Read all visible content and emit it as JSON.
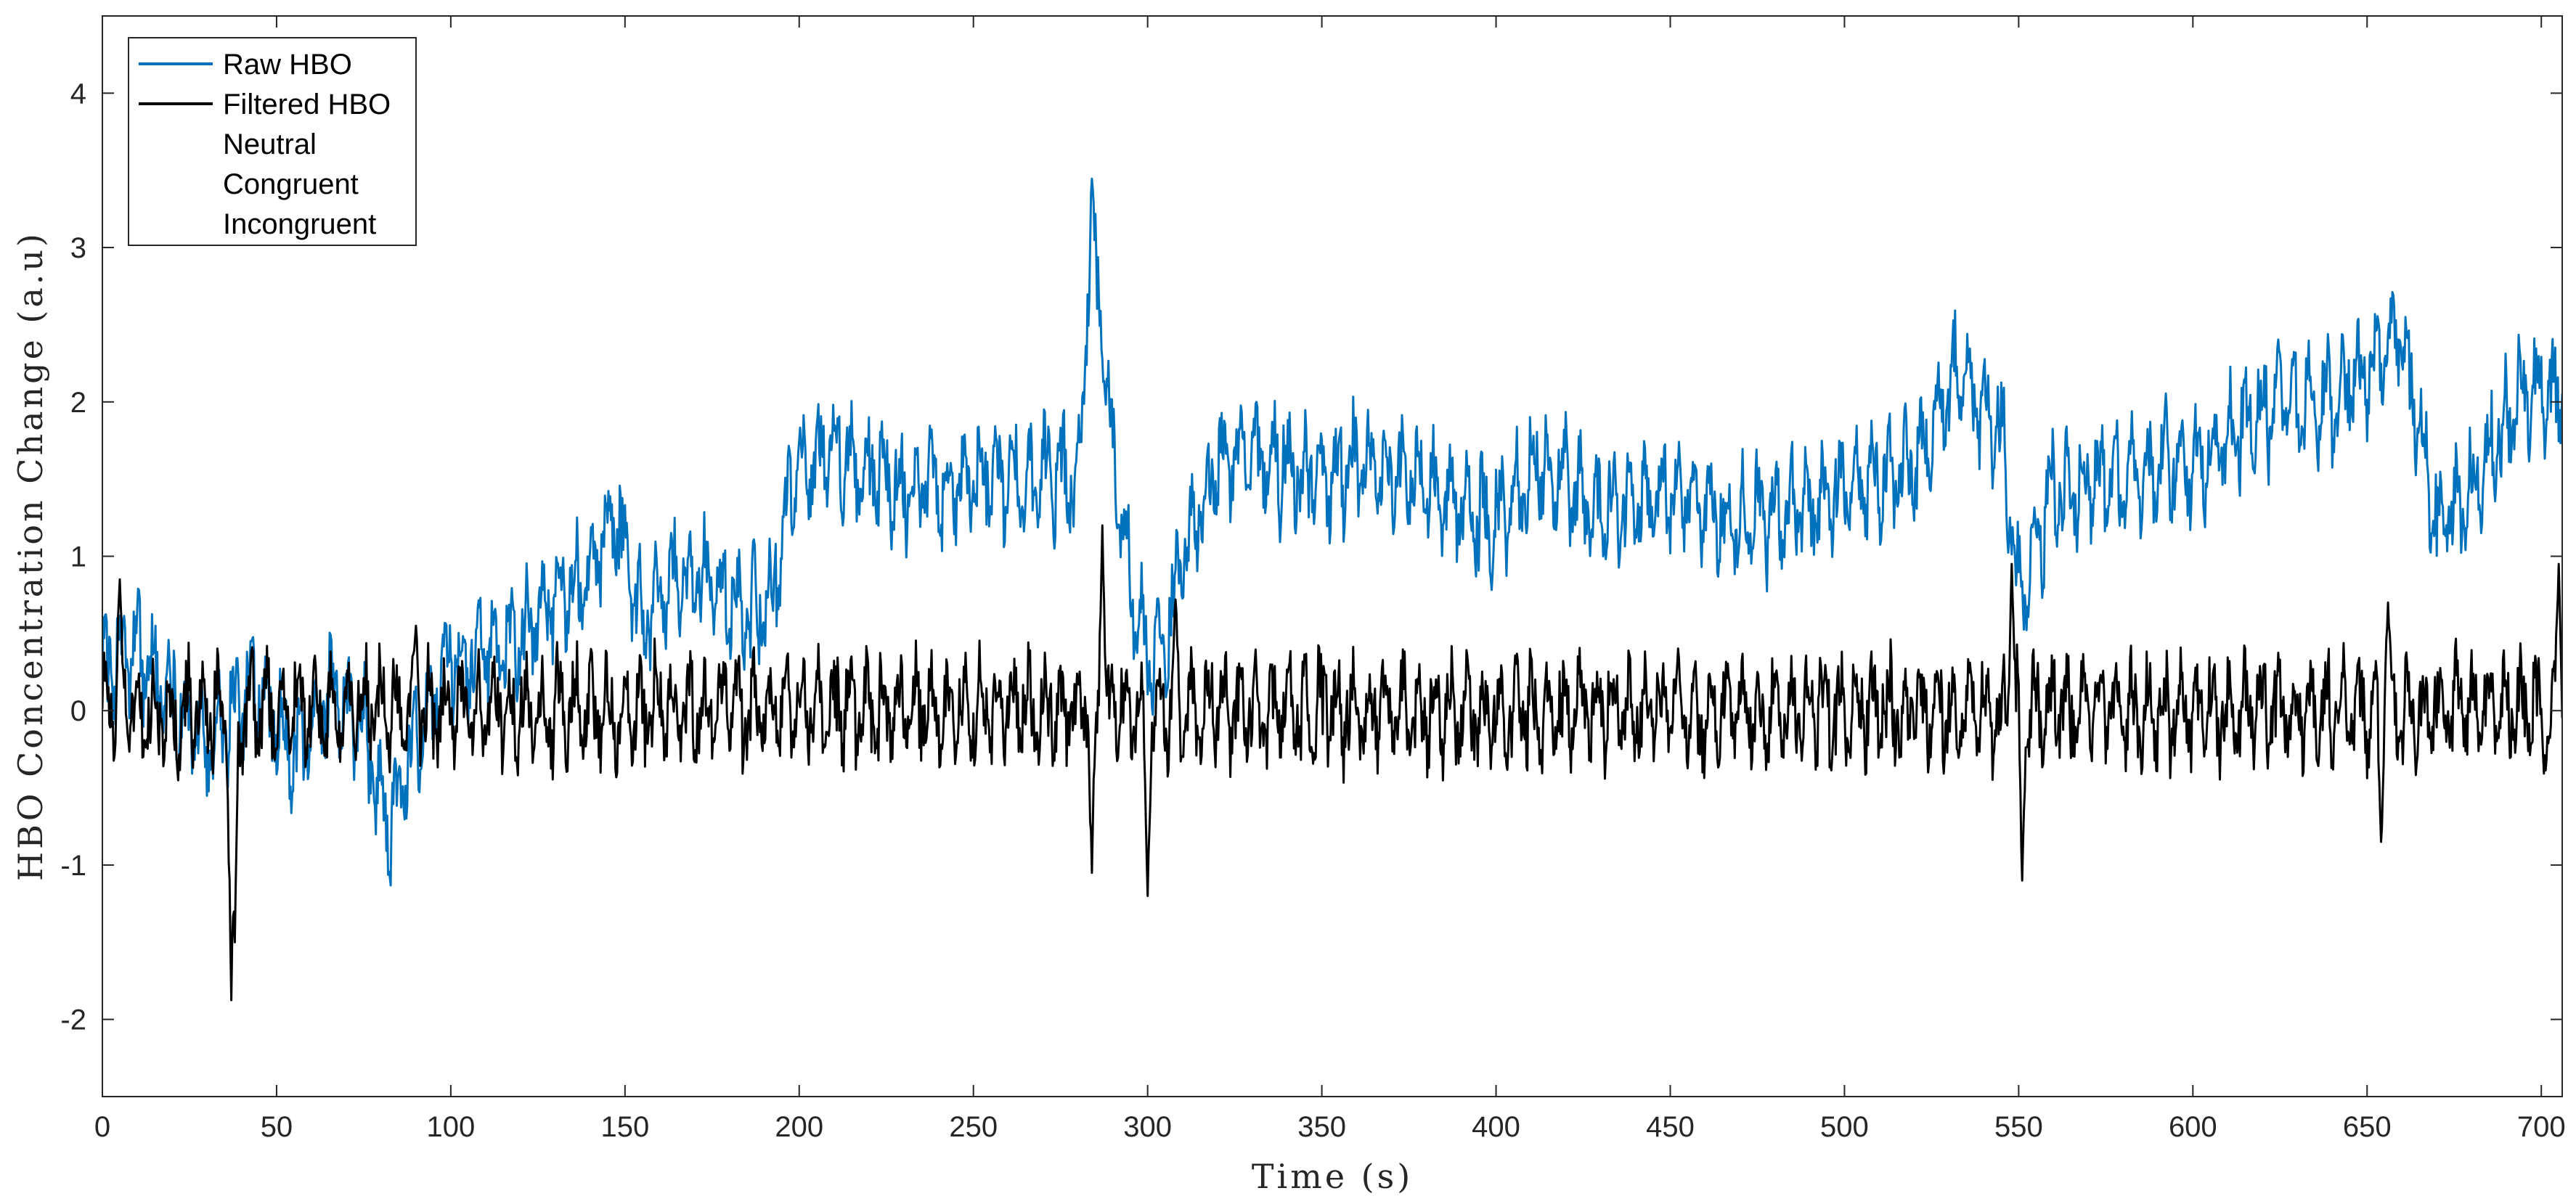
{
  "chart_data": {
    "type": "line",
    "title": "",
    "xlabel": "Time (s)",
    "ylabel": "HBO Concentration Change (a.u)",
    "xlim": [
      0,
      706
    ],
    "ylim": [
      -2.5,
      4.5
    ],
    "xticks": [
      0,
      50,
      100,
      150,
      200,
      250,
      300,
      350,
      400,
      450,
      500,
      550,
      600,
      650,
      700
    ],
    "yticks": [
      -2,
      -1,
      0,
      1,
      2,
      3,
      4
    ],
    "grid": false,
    "legend_position": "top-left",
    "legend": [
      "Raw HBO",
      "Filtered HBO",
      "Neutral",
      "Congruent",
      "Incongruent"
    ],
    "series": [
      {
        "name": "Raw HBO",
        "color": "#0072BD",
        "baseline": {
          "x": [
            0,
            10,
            20,
            30,
            37,
            45,
            55,
            65,
            75,
            82,
            90,
            100,
            110,
            120,
            130,
            140,
            147,
            155,
            165,
            175,
            185,
            192,
            198,
            210,
            230,
            250,
            270,
            280,
            284,
            290,
            295,
            300,
            305,
            310,
            320,
            330,
            345,
            360,
            380,
            400,
            412,
            430,
            450,
            470,
            500,
            520,
            533,
            545,
            550,
            560,
            580,
            600,
            625,
            640,
            660,
            670,
            680,
            695,
            706
          ],
          "y": [
            0.3,
            0.4,
            0.1,
            -0.2,
            0.0,
            0.2,
            -0.3,
            0.1,
            -0.1,
            -0.8,
            -0.2,
            0.3,
            0.4,
            0.5,
            0.8,
            0.9,
            1.3,
            0.6,
            0.9,
            0.8,
            0.6,
            0.7,
            1.5,
            1.7,
            1.4,
            1.5,
            1.5,
            1.5,
            3.2,
            1.6,
            0.8,
            0.3,
            0.4,
            1.0,
            1.6,
            1.7,
            1.5,
            1.6,
            1.5,
            1.2,
            1.6,
            1.3,
            1.4,
            1.2,
            1.4,
            1.6,
            2.2,
            1.8,
            0.7,
            1.4,
            1.5,
            1.6,
            2.0,
            2.0,
            2.4,
            1.2,
            1.4,
            2.1,
            2.0
          ]
        },
        "amplitude": 0.42
      },
      {
        "name": "Filtered HBO",
        "color": "#000000",
        "baseline": {
          "x": [
            0,
            706
          ],
          "y": [
            0,
            0
          ]
        },
        "amplitude": 0.4,
        "spikes": [
          {
            "x": 5,
            "y": 0.85
          },
          {
            "x": 37,
            "y": -1.95
          },
          {
            "x": 38,
            "y": -1.5
          },
          {
            "x": 90,
            "y": 0.55
          },
          {
            "x": 284,
            "y": -1.05
          },
          {
            "x": 287,
            "y": 1.2
          },
          {
            "x": 300,
            "y": -1.2
          },
          {
            "x": 308,
            "y": 0.72
          },
          {
            "x": 548,
            "y": 0.95
          },
          {
            "x": 551,
            "y": -1.1
          },
          {
            "x": 654,
            "y": -0.85
          },
          {
            "x": 656,
            "y": 0.7
          },
          {
            "x": 705,
            "y": 0.95
          }
        ]
      }
    ]
  }
}
